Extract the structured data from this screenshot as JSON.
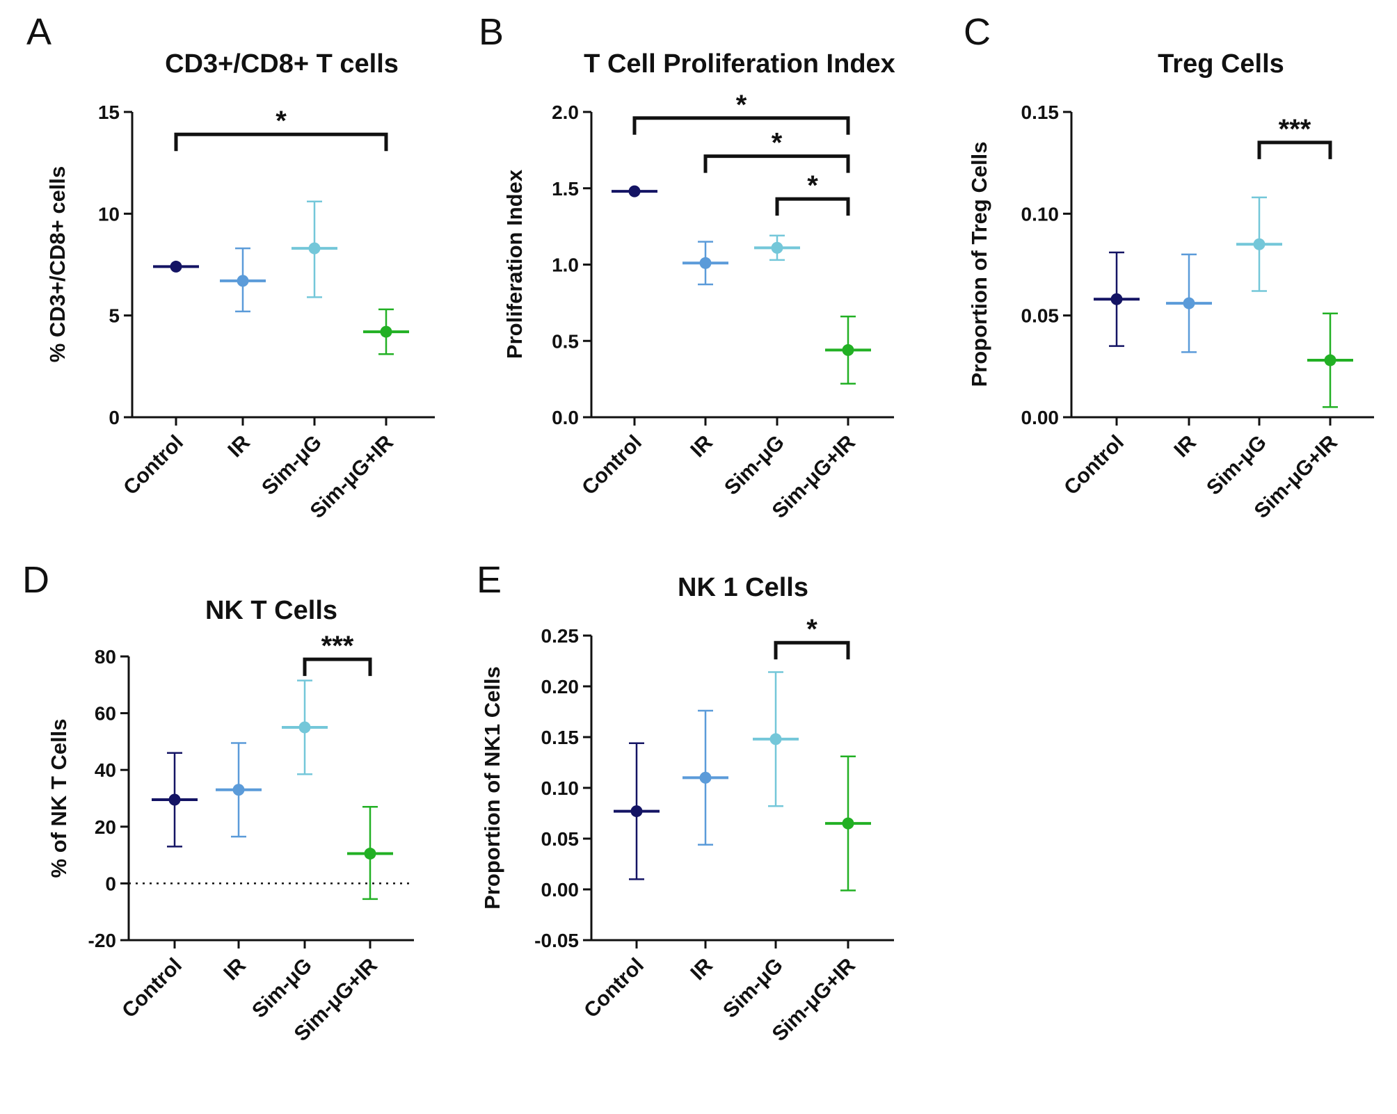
{
  "colors": {
    "Control": "#141464",
    "IR": "#5b9bd9",
    "Sim-μG": "#74c7d9",
    "Sim-μG+IR": "#22b024"
  },
  "chart_data": [
    {
      "panel": "A",
      "type": "scatter",
      "title": "CD3+/CD8+ T cells",
      "ylabel": "% CD3+/CD8+ cells",
      "xlabel": "",
      "categories": [
        "Control",
        "IR",
        "Sim-μG",
        "Sim-μG+IR"
      ],
      "means": [
        7.4,
        6.7,
        8.3,
        4.2
      ],
      "err_low": [
        7.4,
        5.2,
        5.9,
        3.1
      ],
      "err_high": [
        7.4,
        8.3,
        10.6,
        5.3
      ],
      "ylim": [
        0,
        15
      ],
      "yticks": [
        0,
        5,
        10,
        15
      ],
      "ytick_labels": [
        "0",
        "5",
        "10",
        "15"
      ],
      "zero_line": false,
      "significance": [
        {
          "from": 0,
          "to": 3,
          "label": "*",
          "y": 13.9
        }
      ]
    },
    {
      "panel": "B",
      "type": "scatter",
      "title": "T Cell Proliferation Index",
      "ylabel": "Proliferation Index",
      "xlabel": "",
      "categories": [
        "Control",
        "IR",
        "Sim-μG",
        "Sim-μG+IR"
      ],
      "means": [
        1.48,
        1.01,
        1.11,
        0.44
      ],
      "err_low": [
        1.48,
        0.87,
        1.03,
        0.22
      ],
      "err_high": [
        1.48,
        1.15,
        1.19,
        0.66
      ],
      "ylim": [
        0,
        2.0
      ],
      "yticks": [
        0,
        0.5,
        1.0,
        1.5,
        2.0
      ],
      "ytick_labels": [
        "0.0",
        "0.5",
        "1.0",
        "1.5",
        "2.0"
      ],
      "zero_line": false,
      "significance": [
        {
          "from": 0,
          "to": 3,
          "label": "*",
          "y": 1.96
        },
        {
          "from": 1,
          "to": 3,
          "label": "*",
          "y": 1.71
        },
        {
          "from": 2,
          "to": 3,
          "label": "*",
          "y": 1.43
        }
      ]
    },
    {
      "panel": "C",
      "type": "scatter",
      "title": "Treg Cells",
      "ylabel": "Proportion of Treg Cells",
      "xlabel": "",
      "categories": [
        "Control",
        "IR",
        "Sim-μG",
        "Sim-μG+IR"
      ],
      "means": [
        0.058,
        0.056,
        0.085,
        0.028
      ],
      "err_low": [
        0.035,
        0.032,
        0.062,
        0.005
      ],
      "err_high": [
        0.081,
        0.08,
        0.108,
        0.051
      ],
      "ylim": [
        0,
        0.15
      ],
      "yticks": [
        0,
        0.05,
        0.1,
        0.15
      ],
      "ytick_labels": [
        "0.00",
        "0.05",
        "0.10",
        "0.15"
      ],
      "zero_line": false,
      "significance": [
        {
          "from": 2,
          "to": 3,
          "label": "***",
          "y": 0.135
        }
      ]
    },
    {
      "panel": "D",
      "type": "scatter",
      "title": "NK T Cells",
      "ylabel": "% of NK T Cells",
      "xlabel": "",
      "categories": [
        "Control",
        "IR",
        "Sim-μG",
        "Sim-μG+IR"
      ],
      "means": [
        29.5,
        33,
        55,
        10.5
      ],
      "err_low": [
        13,
        16.5,
        38.5,
        -5.5
      ],
      "err_high": [
        46,
        49.5,
        71.5,
        27
      ],
      "ylim": [
        -20,
        80
      ],
      "yticks": [
        -20,
        0,
        20,
        40,
        60,
        80
      ],
      "ytick_labels": [
        "-20",
        "0",
        "20",
        "40",
        "60",
        "80"
      ],
      "zero_line": true,
      "significance": [
        {
          "from": 2,
          "to": 3,
          "label": "***",
          "y": 79
        }
      ]
    },
    {
      "panel": "E",
      "type": "scatter",
      "title": "NK 1 Cells",
      "ylabel": "Proportion of NK1 Cells",
      "xlabel": "",
      "categories": [
        "Control",
        "IR",
        "Sim-μG",
        "Sim-μG+IR"
      ],
      "means": [
        0.077,
        0.11,
        0.148,
        0.065
      ],
      "err_low": [
        0.01,
        0.044,
        0.082,
        -0.001
      ],
      "err_high": [
        0.144,
        0.176,
        0.214,
        0.131
      ],
      "ylim": [
        -0.05,
        0.25
      ],
      "yticks": [
        -0.05,
        0,
        0.05,
        0.1,
        0.15,
        0.2,
        0.25
      ],
      "ytick_labels": [
        "-0.05",
        "0.00",
        "0.05",
        "0.10",
        "0.15",
        "0.20",
        "0.25"
      ],
      "zero_line": false,
      "significance": [
        {
          "from": 2,
          "to": 3,
          "label": "*",
          "y": 0.243
        }
      ]
    }
  ]
}
